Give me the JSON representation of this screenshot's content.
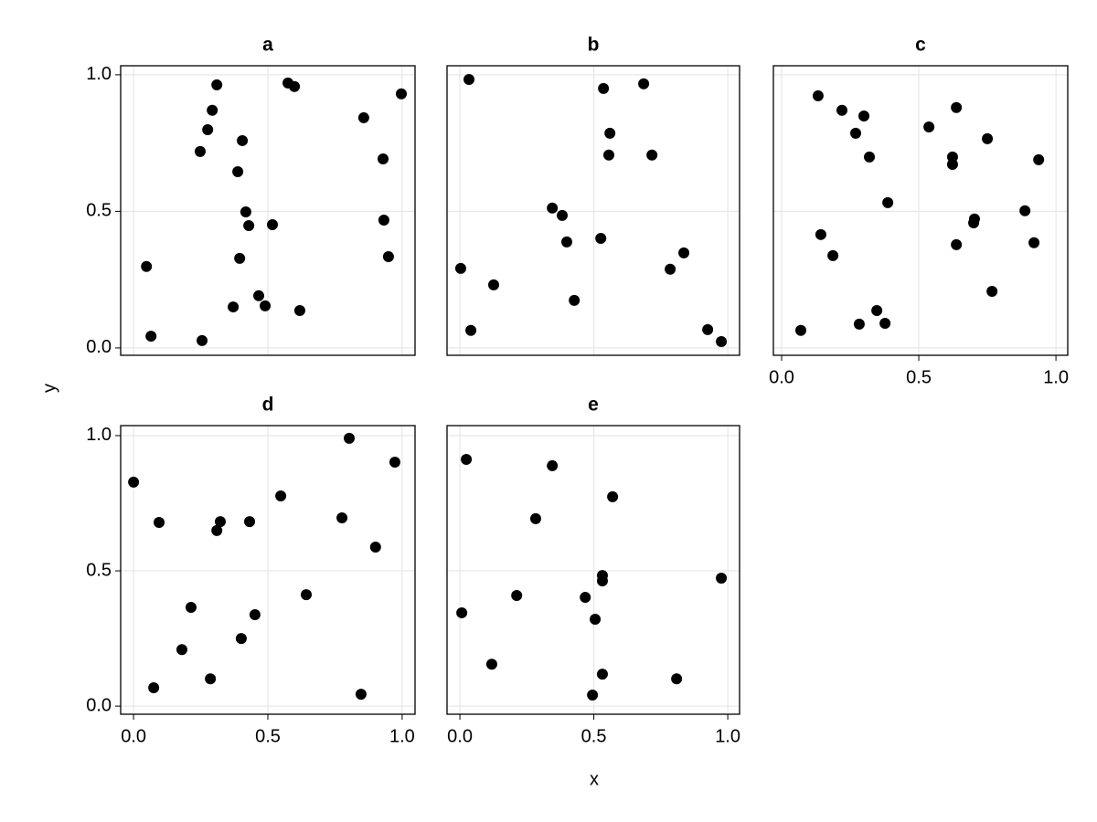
{
  "xlabel": "x",
  "ylabel": "y",
  "chart_data": [
    {
      "type": "scatter",
      "title": "a",
      "color": "#000000",
      "grid": true,
      "show_xticklabels": false,
      "show_yticklabels": true,
      "xlim": [
        -0.048,
        1.048
      ],
      "ylim": [
        -0.027,
        1.033
      ],
      "xticks": [
        {
          "value": 0,
          "label": "0.0"
        },
        0.5,
        {
          "value": 1,
          "label": "1.0"
        }
      ],
      "yticks": [
        {
          "value": 0,
          "label": "0.0"
        },
        0.5,
        {
          "value": 1,
          "label": "1.0"
        }
      ],
      "x": [
        0.048,
        0.065,
        0.248,
        0.276,
        0.293,
        0.31,
        0.255,
        0.405,
        0.388,
        0.418,
        0.429,
        0.395,
        0.371,
        0.466,
        0.49,
        0.517,
        0.575,
        0.599,
        0.619,
        0.857,
        0.929,
        0.932,
        0.949,
        0.997
      ],
      "y": [
        0.298,
        0.043,
        0.719,
        0.799,
        0.87,
        0.963,
        0.027,
        0.759,
        0.645,
        0.498,
        0.448,
        0.328,
        0.15,
        0.191,
        0.154,
        0.451,
        0.97,
        0.957,
        0.137,
        0.843,
        0.692,
        0.468,
        0.334,
        0.93
      ]
    },
    {
      "type": "scatter",
      "title": "b",
      "color": "#000000",
      "grid": true,
      "show_xticklabels": false,
      "show_yticklabels": false,
      "xlim": [
        -0.048,
        1.044
      ],
      "ylim": [
        -0.027,
        1.033
      ],
      "xticks": [
        {
          "value": 0,
          "label": "0.0"
        },
        0.5,
        {
          "value": 1,
          "label": "1.0"
        }
      ],
      "yticks": [
        {
          "value": 0,
          "label": "0.0"
        },
        0.5,
        {
          "value": 1,
          "label": "1.0"
        }
      ],
      "x": [
        0.034,
        0.003,
        0.041,
        0.126,
        0.345,
        0.382,
        0.399,
        0.427,
        0.526,
        0.536,
        0.56,
        0.556,
        0.686,
        0.717,
        0.785,
        0.836,
        0.925,
        0.976
      ],
      "y": [
        0.983,
        0.291,
        0.064,
        0.231,
        0.512,
        0.485,
        0.388,
        0.174,
        0.401,
        0.95,
        0.786,
        0.706,
        0.967,
        0.706,
        0.288,
        0.348,
        0.067,
        0.023
      ]
    },
    {
      "type": "scatter",
      "title": "c",
      "color": "#000000",
      "grid": true,
      "show_xticklabels": true,
      "show_yticklabels": false,
      "xlim": [
        -0.03,
        1.043
      ],
      "ylim": [
        -0.027,
        1.033
      ],
      "xticks": [
        {
          "value": 0,
          "label": "0.0"
        },
        0.5,
        {
          "value": 1,
          "label": "1.0"
        }
      ],
      "yticks": [
        {
          "value": 0,
          "label": "0.0"
        },
        0.5,
        {
          "value": 1,
          "label": "1.0"
        }
      ],
      "x": [
        0.133,
        0.22,
        0.3,
        0.27,
        0.32,
        0.07,
        0.143,
        0.187,
        0.283,
        0.347,
        0.377,
        0.387,
        0.537,
        0.637,
        0.623,
        0.623,
        0.637,
        0.703,
        0.7,
        0.75,
        0.767,
        0.887,
        0.92,
        0.937
      ],
      "y": [
        0.923,
        0.87,
        0.849,
        0.786,
        0.699,
        0.064,
        0.415,
        0.338,
        0.087,
        0.137,
        0.09,
        0.532,
        0.809,
        0.88,
        0.699,
        0.672,
        0.378,
        0.472,
        0.458,
        0.766,
        0.207,
        0.502,
        0.385,
        0.689
      ]
    },
    {
      "type": "scatter",
      "title": "d",
      "color": "#000000",
      "grid": true,
      "show_xticklabels": true,
      "show_yticklabels": true,
      "xlim": [
        -0.048,
        1.048
      ],
      "ylim": [
        -0.03,
        1.037
      ],
      "xticks": [
        {
          "value": 0,
          "label": "0.0"
        },
        0.5,
        {
          "value": 1,
          "label": "1.0"
        }
      ],
      "yticks": [
        {
          "value": 0,
          "label": "0.0"
        },
        0.5,
        {
          "value": 1,
          "label": "1.0"
        }
      ],
      "x": [
        0,
        0.075,
        0.095,
        0.18,
        0.214,
        0.286,
        0.31,
        0.323,
        0.401,
        0.432,
        0.452,
        0.548,
        0.643,
        0.776,
        0.803,
        0.847,
        0.901,
        0.973
      ],
      "y": [
        0.828,
        0.068,
        0.679,
        0.209,
        0.365,
        0.101,
        0.649,
        0.682,
        0.25,
        0.682,
        0.338,
        0.777,
        0.412,
        0.696,
        0.99,
        0.044,
        0.588,
        0.902
      ]
    },
    {
      "type": "scatter",
      "title": "e",
      "color": "#000000",
      "grid": true,
      "show_xticklabels": true,
      "show_yticklabels": false,
      "xlim": [
        -0.048,
        1.044
      ],
      "ylim": [
        -0.03,
        1.037
      ],
      "xticks": [
        {
          "value": 0,
          "label": "0.0"
        },
        0.5,
        {
          "value": 1,
          "label": "1.0"
        }
      ],
      "yticks": [
        {
          "value": 0,
          "label": "0.0"
        },
        0.5,
        {
          "value": 1,
          "label": "1.0"
        }
      ],
      "x": [
        0.024,
        0.007,
        0.119,
        0.212,
        0.283,
        0.345,
        0.468,
        0.495,
        0.505,
        0.532,
        0.532,
        0.532,
        0.57,
        0.809,
        0.976
      ],
      "y": [
        0.912,
        0.345,
        0.155,
        0.409,
        0.693,
        0.889,
        0.402,
        0.041,
        0.321,
        0.463,
        0.483,
        0.118,
        0.774,
        0.101,
        0.473
      ]
    }
  ]
}
